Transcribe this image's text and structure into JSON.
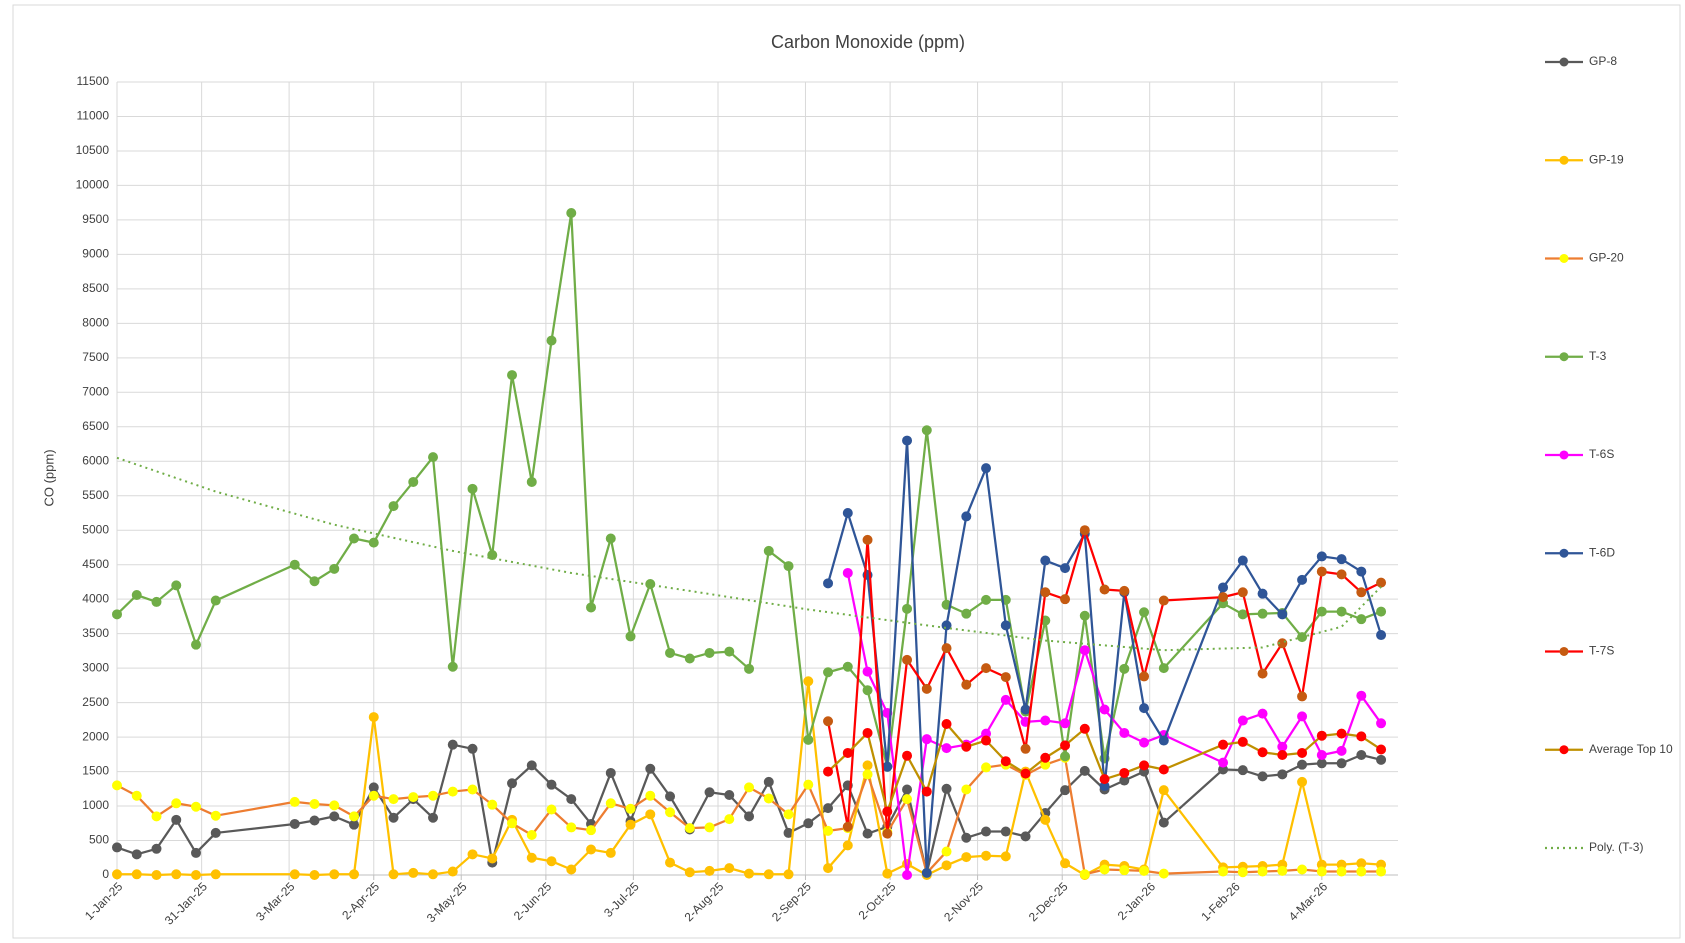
{
  "chart_data": {
    "type": "line",
    "title": "Carbon Monoxide (ppm)",
    "y_label": "CO (ppm)",
    "x": [
      "2025-01-01",
      "2025-01-08",
      "2025-01-15",
      "2025-01-22",
      "2025-01-29",
      "2025-02-05",
      "2025-03-05",
      "2025-03-12",
      "2025-03-19",
      "2025-03-26",
      "2025-04-02",
      "2025-04-09",
      "2025-04-16",
      "2025-04-23",
      "2025-04-30",
      "2025-05-07",
      "2025-05-14",
      "2025-05-21",
      "2025-05-28",
      "2025-06-04",
      "2025-06-11",
      "2025-06-18",
      "2025-06-25",
      "2025-07-02",
      "2025-07-09",
      "2025-07-16",
      "2025-07-23",
      "2025-07-30",
      "2025-08-06",
      "2025-08-13",
      "2025-08-20",
      "2025-08-27",
      "2025-09-03",
      "2025-09-10",
      "2025-09-17",
      "2025-09-24",
      "2025-10-01",
      "2025-10-08",
      "2025-10-15",
      "2025-10-22",
      "2025-10-29",
      "2025-11-05",
      "2025-11-12",
      "2025-11-19",
      "2025-11-26",
      "2025-12-03",
      "2025-12-10",
      "2025-12-17",
      "2025-12-24",
      "2025-12-31",
      "2026-01-07",
      "2026-01-28",
      "2026-02-04",
      "2026-02-11",
      "2026-02-18",
      "2026-02-25",
      "2026-03-04",
      "2026-03-11",
      "2026-03-18",
      "2026-03-25"
    ],
    "series": [
      {
        "name": "GP-8",
        "color": "#595959",
        "marker_color": "#595959",
        "values": [
          400,
          300,
          380,
          800,
          320,
          610,
          740,
          790,
          850,
          730,
          1270,
          830,
          1100,
          830,
          1890,
          1830,
          180,
          1330,
          1590,
          1310,
          1100,
          740,
          1480,
          780,
          1540,
          1140,
          660,
          1200,
          1160,
          850,
          1350,
          610,
          750,
          970,
          1300,
          600,
          700,
          1240,
          30,
          1250,
          540,
          630,
          630,
          560,
          900,
          1230,
          1510,
          1240,
          1370,
          1500,
          760,
          1530,
          1520,
          1430,
          1460,
          1600,
          1620,
          1620,
          1740,
          1670
        ]
      },
      {
        "name": "GP-19",
        "color": "#ffc000",
        "marker_color": "#ffc000",
        "values": [
          10,
          10,
          0,
          10,
          0,
          10,
          10,
          0,
          10,
          10,
          2290,
          10,
          30,
          10,
          50,
          300,
          240,
          800,
          250,
          200,
          80,
          370,
          320,
          730,
          880,
          180,
          40,
          60,
          100,
          20,
          10,
          10,
          2810,
          100,
          430,
          1590,
          20,
          160,
          0,
          140,
          260,
          280,
          270,
          1500,
          800,
          170,
          0,
          150,
          130,
          80,
          1230,
          110,
          120,
          130,
          150,
          1350,
          150,
          150,
          170,
          150
        ]
      },
      {
        "name": "GP-20",
        "color": "#ed7d31",
        "marker_color": "#ffff00",
        "values": [
          1300,
          1150,
          850,
          1040,
          990,
          860,
          1060,
          1030,
          1010,
          850,
          1150,
          1100,
          1130,
          1150,
          1210,
          1240,
          1020,
          750,
          580,
          950,
          690,
          650,
          1040,
          960,
          1150,
          910,
          680,
          690,
          810,
          1270,
          1110,
          880,
          1310,
          640,
          680,
          1460,
          620,
          1100,
          30,
          340,
          1240,
          1560,
          1600,
          1450,
          1600,
          1700,
          10,
          80,
          70,
          60,
          20,
          50,
          40,
          50,
          60,
          80,
          50,
          50,
          50,
          50
        ]
      },
      {
        "name": "T-3",
        "color": "#70ad47",
        "marker_color": "#70ad47",
        "values": [
          3780,
          4060,
          3960,
          4200,
          3340,
          3980,
          4500,
          4260,
          4440,
          4880,
          4820,
          5350,
          5700,
          6060,
          3020,
          5600,
          4640,
          7250,
          5700,
          7750,
          9600,
          3880,
          4880,
          3460,
          4220,
          3220,
          3140,
          3220,
          3240,
          2990,
          4700,
          4480,
          1960,
          2940,
          3020,
          2680,
          1570,
          3860,
          6450,
          3920,
          3790,
          3990,
          3990,
          2370,
          3690,
          1720,
          3760,
          1690,
          2990,
          3810,
          3000,
          3940,
          3780,
          3790,
          3800,
          3450,
          3820,
          3820,
          3710,
          3820
        ]
      },
      {
        "name": "T-6S",
        "color": "#ff00ff",
        "marker_color": "#ff00ff",
        "values": [
          null,
          null,
          null,
          null,
          null,
          null,
          null,
          null,
          null,
          null,
          null,
          null,
          null,
          null,
          null,
          null,
          null,
          null,
          null,
          null,
          null,
          null,
          null,
          null,
          null,
          null,
          null,
          null,
          null,
          null,
          null,
          null,
          null,
          null,
          4380,
          2950,
          2350,
          0,
          1970,
          1840,
          1890,
          2050,
          2540,
          2220,
          2240,
          2200,
          3260,
          2400,
          2060,
          1920,
          2030,
          1630,
          2240,
          2340,
          1860,
          2300,
          1740,
          1800,
          2600,
          2200
        ]
      },
      {
        "name": "T-6D",
        "color": "#2f5597",
        "marker_color": "#2f5597",
        "values": [
          null,
          null,
          null,
          null,
          null,
          null,
          null,
          null,
          null,
          null,
          null,
          null,
          null,
          null,
          null,
          null,
          null,
          null,
          null,
          null,
          null,
          null,
          null,
          null,
          null,
          null,
          null,
          null,
          null,
          null,
          null,
          null,
          null,
          4230,
          5250,
          4350,
          1570,
          6300,
          30,
          3620,
          5200,
          5900,
          3620,
          2400,
          4560,
          4450,
          4950,
          1290,
          4100,
          2420,
          1950,
          4170,
          4560,
          4080,
          3780,
          4280,
          4620,
          4580,
          4400,
          3480
        ]
      },
      {
        "name": "T-7S",
        "color": "#ff0000",
        "marker_color": "#c55a11",
        "values": [
          null,
          null,
          null,
          null,
          null,
          null,
          null,
          null,
          null,
          null,
          null,
          null,
          null,
          null,
          null,
          null,
          null,
          null,
          null,
          null,
          null,
          null,
          null,
          null,
          null,
          null,
          null,
          null,
          null,
          null,
          null,
          null,
          null,
          2230,
          700,
          4860,
          600,
          3120,
          2700,
          3290,
          2760,
          3000,
          2870,
          1830,
          4100,
          4000,
          5000,
          4140,
          4120,
          2880,
          3980,
          4030,
          4100,
          2920,
          3360,
          2590,
          4400,
          4360,
          4100,
          4240
        ]
      },
      {
        "name": "Average Top 10",
        "color": "#bf9000",
        "marker_color": "#ff0000",
        "values": [
          null,
          null,
          null,
          null,
          null,
          null,
          null,
          null,
          null,
          null,
          null,
          null,
          null,
          null,
          null,
          null,
          null,
          null,
          null,
          null,
          null,
          null,
          null,
          null,
          null,
          null,
          null,
          null,
          null,
          null,
          null,
          null,
          null,
          1500,
          1770,
          2060,
          920,
          1730,
          1210,
          2190,
          1860,
          1950,
          1650,
          1470,
          1700,
          1880,
          2120,
          1390,
          1480,
          1590,
          1530,
          1890,
          1930,
          1780,
          1740,
          1770,
          2020,
          2050,
          2010,
          1820
        ]
      },
      {
        "name": "Poly. (T-3)",
        "color": "#70ad47",
        "dash": "dotted",
        "markers": false,
        "x": [
          "2025-01-01",
          "2025-02-05",
          "2025-03-19",
          "2025-04-30",
          "2025-06-11",
          "2025-07-23",
          "2025-09-03",
          "2025-10-15",
          "2025-11-26",
          "2026-01-07",
          "2026-02-11",
          "2026-03-11",
          "2026-03-25"
        ],
        "values": [
          6050,
          5560,
          5080,
          4700,
          4380,
          4120,
          3850,
          3620,
          3400,
          3260,
          3300,
          3600,
          4180
        ]
      }
    ],
    "xlim": [
      "2025-01-01",
      "2026-03-31"
    ],
    "xticks": [
      {
        "value": "2025-01-01",
        "label": "1-Jan-25"
      },
      {
        "value": "2025-01-31",
        "label": "31-Jan-25"
      },
      {
        "value": "2025-03-03",
        "label": "3-Mar-25"
      },
      {
        "value": "2025-04-02",
        "label": "2-Apr-25"
      },
      {
        "value": "2025-05-03",
        "label": "3-May-25"
      },
      {
        "value": "2025-06-02",
        "label": "2-Jun-25"
      },
      {
        "value": "2025-07-03",
        "label": "3-Jul-25"
      },
      {
        "value": "2025-08-02",
        "label": "2-Aug-25"
      },
      {
        "value": "2025-09-02",
        "label": "2-Sep-25"
      },
      {
        "value": "2025-10-02",
        "label": "2-Oct-25"
      },
      {
        "value": "2025-11-02",
        "label": "2-Nov-25"
      },
      {
        "value": "2025-12-02",
        "label": "2-Dec-25"
      },
      {
        "value": "2026-01-02",
        "label": "2-Jan-26"
      },
      {
        "value": "2026-02-01",
        "label": "1-Feb-26"
      },
      {
        "value": "2026-03-04",
        "label": "4-Mar-26"
      }
    ],
    "ylim": [
      0,
      11500
    ],
    "yticks": [
      0,
      500,
      1000,
      1500,
      2000,
      2500,
      3000,
      3500,
      4000,
      4500,
      5000,
      5500,
      6000,
      6500,
      7000,
      7500,
      8000,
      8500,
      9000,
      9500,
      10000,
      10500,
      11000,
      11500
    ],
    "grid": true,
    "legend": "right"
  }
}
